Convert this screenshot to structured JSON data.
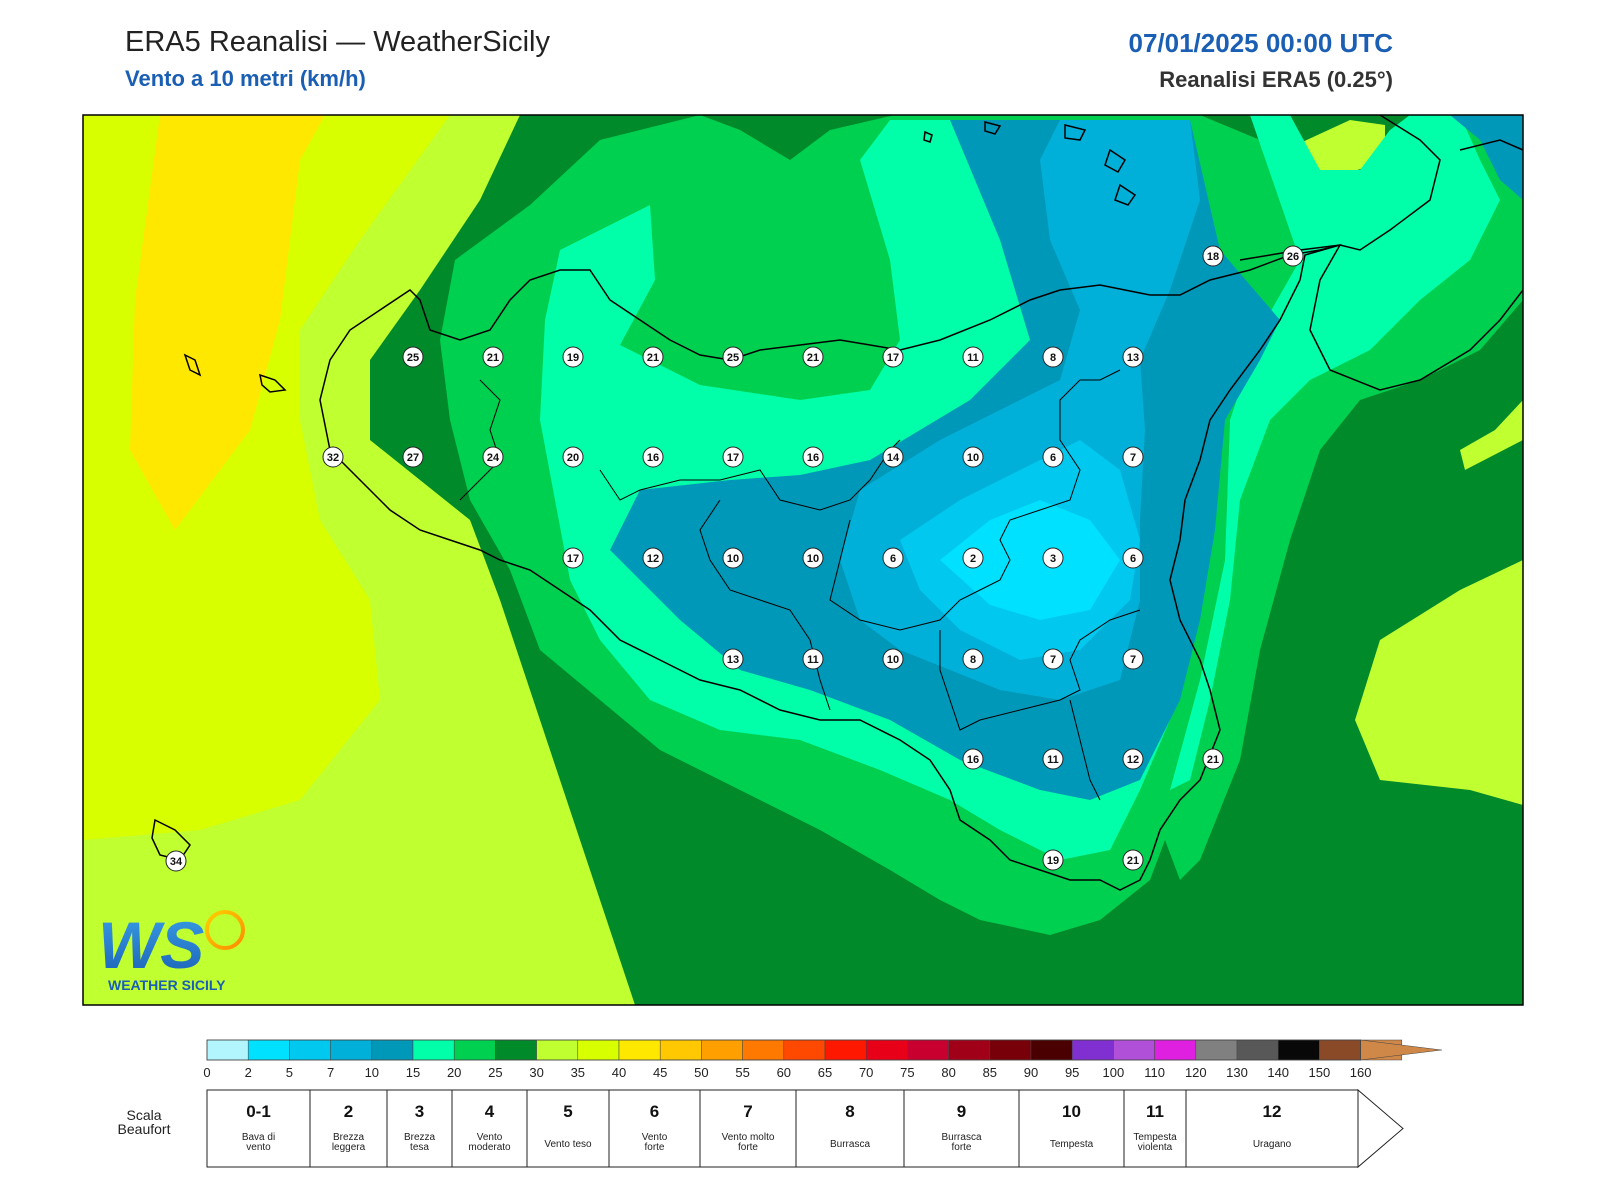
{
  "header": {
    "title": "ERA5 Reanalisi — WeatherSicily",
    "subtitle": "Vento a 10 metri (km/h)",
    "datetime": "07/01/2025 00:00 UTC",
    "source": "Reanalisi ERA5 (0.25°)"
  },
  "logo": {
    "letters": "WS",
    "text": "WEATHER SICILY"
  },
  "colorbar": {
    "ticks": [
      "0",
      "2",
      "5",
      "7",
      "10",
      "15",
      "20",
      "25",
      "30",
      "35",
      "40",
      "45",
      "50",
      "55",
      "60",
      "65",
      "70",
      "75",
      "80",
      "85",
      "90",
      "95",
      "100",
      "110",
      "120",
      "130",
      "140",
      "150",
      "160"
    ],
    "colors": [
      "#b3f5ff",
      "#00e0ff",
      "#00c8ee",
      "#00b0d8",
      "#0098b8",
      "#00ffa8",
      "#00d050",
      "#008a2a",
      "#c0ff30",
      "#d8ff00",
      "#ffe800",
      "#ffc800",
      "#ffa000",
      "#ff7800",
      "#ff4800",
      "#ff1800",
      "#e80018",
      "#c80030",
      "#a00018",
      "#780008",
      "#4a0000",
      "#8030d0",
      "#b050d8",
      "#e020e0",
      "#808080",
      "#585858",
      "#080808",
      "#8a4a28",
      "#d08848"
    ]
  },
  "beaufort": {
    "label_line1": "Scala",
    "label_line2": "Beaufort",
    "classes": [
      {
        "num": "0-1",
        "desc1": "Bava di",
        "desc2": "vento"
      },
      {
        "num": "2",
        "desc1": "Brezza",
        "desc2": "leggera"
      },
      {
        "num": "3",
        "desc1": "Brezza",
        "desc2": "tesa"
      },
      {
        "num": "4",
        "desc1": "Vento",
        "desc2": "moderato"
      },
      {
        "num": "5",
        "desc1": "Vento teso",
        "desc2": ""
      },
      {
        "num": "6",
        "desc1": "Vento",
        "desc2": "forte"
      },
      {
        "num": "7",
        "desc1": "Vento molto",
        "desc2": "forte"
      },
      {
        "num": "8",
        "desc1": "Burrasca",
        "desc2": ""
      },
      {
        "num": "9",
        "desc1": "Burrasca",
        "desc2": "forte"
      },
      {
        "num": "10",
        "desc1": "Tempesta",
        "desc2": ""
      },
      {
        "num": "11",
        "desc1": "Tempesta",
        "desc2": "violenta"
      },
      {
        "num": "12",
        "desc1": "Uragano",
        "desc2": ""
      }
    ]
  },
  "wind_points": [
    {
      "id": "r1c1",
      "value": "25"
    },
    {
      "id": "r1c2",
      "value": "21"
    },
    {
      "id": "r1c3",
      "value": "19"
    },
    {
      "id": "r1c4",
      "value": "21"
    },
    {
      "id": "r1c5",
      "value": "25"
    },
    {
      "id": "r1c6",
      "value": "21"
    },
    {
      "id": "r1c7",
      "value": "17"
    },
    {
      "id": "r1c8",
      "value": "11"
    },
    {
      "id": "r1c9",
      "value": "8"
    },
    {
      "id": "r1c10",
      "value": "13"
    },
    {
      "id": "r2c0",
      "value": "32"
    },
    {
      "id": "r2c1",
      "value": "27"
    },
    {
      "id": "r2c2",
      "value": "24"
    },
    {
      "id": "r2c3",
      "value": "20"
    },
    {
      "id": "r2c4",
      "value": "16"
    },
    {
      "id": "r2c5",
      "value": "17"
    },
    {
      "id": "r2c6",
      "value": "16"
    },
    {
      "id": "r2c7",
      "value": "14"
    },
    {
      "id": "r2c8",
      "value": "10"
    },
    {
      "id": "r2c9",
      "value": "6"
    },
    {
      "id": "r2c10",
      "value": "7"
    },
    {
      "id": "r3c3",
      "value": "17"
    },
    {
      "id": "r3c4",
      "value": "12"
    },
    {
      "id": "r3c5",
      "value": "10"
    },
    {
      "id": "r3c6",
      "value": "10"
    },
    {
      "id": "r3c7",
      "value": "6"
    },
    {
      "id": "r3c8",
      "value": "2"
    },
    {
      "id": "r3c9",
      "value": "3"
    },
    {
      "id": "r3c10",
      "value": "6"
    },
    {
      "id": "r4c5",
      "value": "13"
    },
    {
      "id": "r4c6",
      "value": "11"
    },
    {
      "id": "r4c7",
      "value": "10"
    },
    {
      "id": "r4c8",
      "value": "8"
    },
    {
      "id": "r4c9",
      "value": "7"
    },
    {
      "id": "r4c10",
      "value": "7"
    },
    {
      "id": "r5c8",
      "value": "16"
    },
    {
      "id": "r5c9",
      "value": "11"
    },
    {
      "id": "r5c10",
      "value": "12"
    },
    {
      "id": "r5c11",
      "value": "21"
    },
    {
      "id": "r6c9",
      "value": "19"
    },
    {
      "id": "r6c10",
      "value": "21"
    },
    {
      "id": "pantelleria",
      "value": "34"
    },
    {
      "id": "calabria1",
      "value": "18"
    },
    {
      "id": "calabria2",
      "value": "26"
    }
  ]
}
